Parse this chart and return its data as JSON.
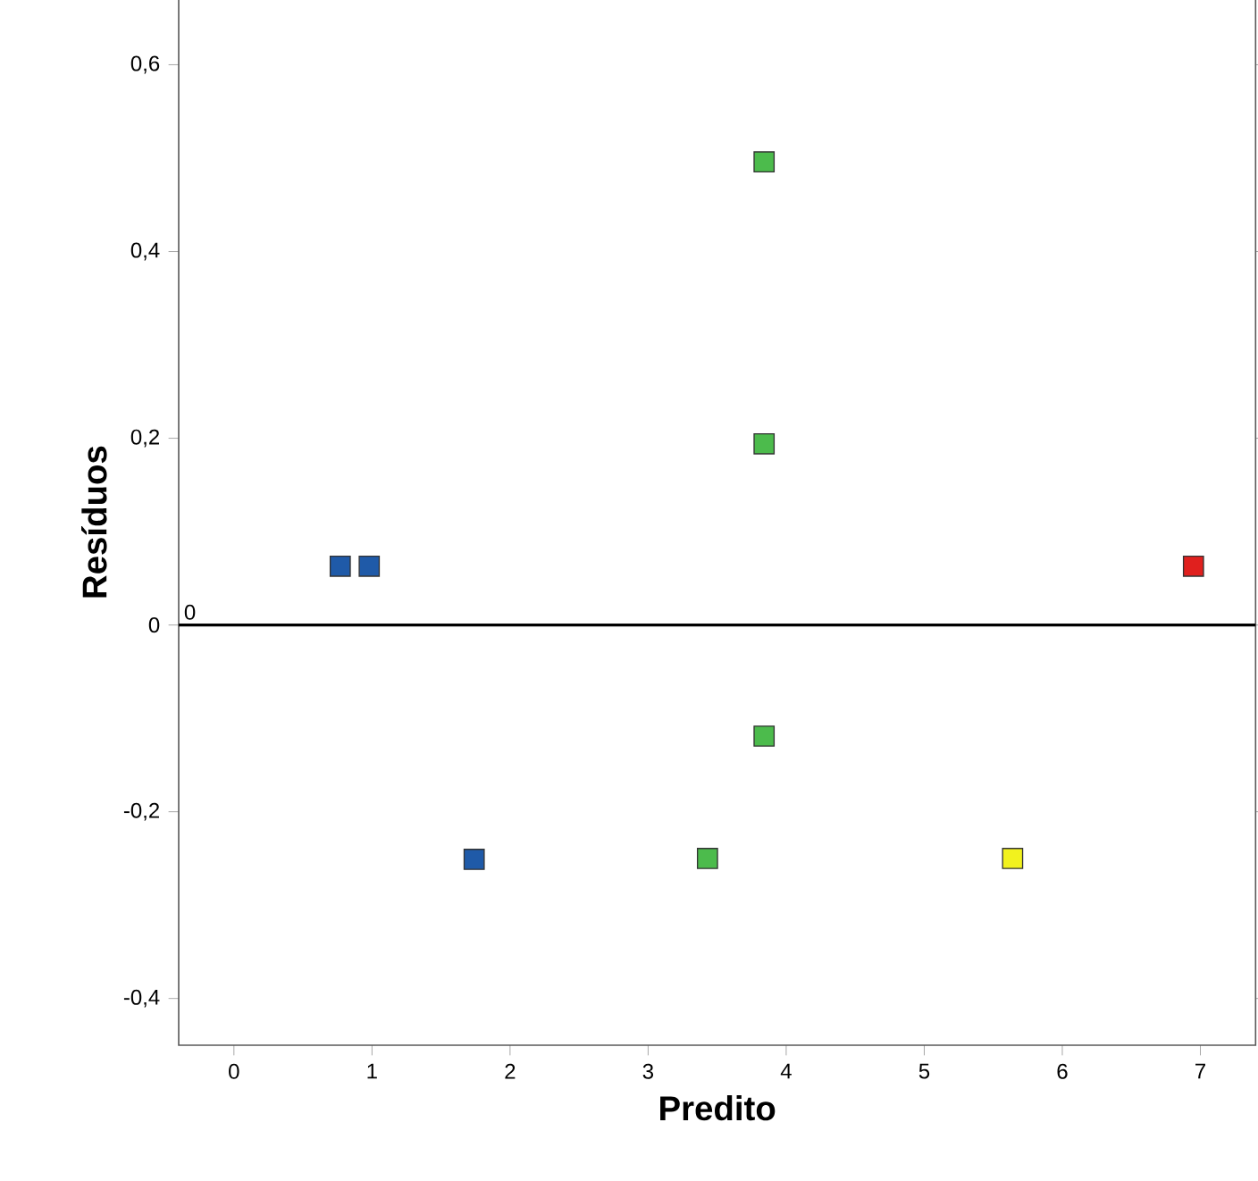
{
  "chart_data": {
    "type": "scatter",
    "xlabel": "Predito",
    "ylabel": "Resíduos",
    "x": [
      0.77,
      0.98,
      1.74,
      3.43,
      3.84,
      3.84,
      3.84,
      5.64,
      6.95
    ],
    "values": [
      0.063,
      0.063,
      -0.251,
      -0.25,
      0.496,
      0.194,
      -0.119,
      -0.25,
      0.063
    ],
    "colors": [
      "#1f5aa8",
      "#1f5aa8",
      "#1f5aa8",
      "#4cbb4c",
      "#4cbb4c",
      "#4cbb4c",
      "#4cbb4c",
      "#f2f21e",
      "#e0201e"
    ],
    "marker": "square",
    "xlim": [
      -0.4,
      7.4
    ],
    "ylim": [
      -0.45,
      0.67
    ],
    "xticks": [
      0,
      1,
      2,
      3,
      4,
      5,
      6,
      7
    ],
    "yticks": [
      {
        "value": -0.4,
        "label": "-0,4"
      },
      {
        "value": -0.2,
        "label": "-0,2"
      },
      0,
      {
        "value": 0.2,
        "label": "0,2"
      },
      {
        "value": 0.4,
        "label": "0,4"
      },
      {
        "value": 0.6,
        "label": "0,6"
      }
    ],
    "ref_lines": [
      {
        "axis": "y",
        "value": 0,
        "label": "0",
        "color": "#000000"
      }
    ],
    "grid": false
  }
}
